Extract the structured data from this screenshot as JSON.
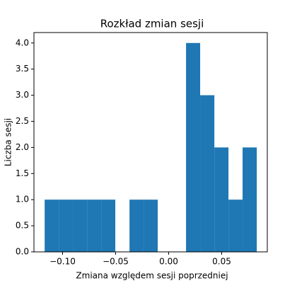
{
  "chart_data": {
    "type": "histogram",
    "title": "Rozkład zmian sesji",
    "x_label": "Zmiana względem sesji poprzedniej",
    "y_label": "Liczba sesji",
    "bins": [
      -0.1169,
      -0.1036,
      -0.0903,
      -0.0769,
      -0.0636,
      -0.0503,
      -0.0369,
      -0.0236,
      -0.0103,
      0.0031,
      0.0164,
      0.0297,
      0.0431,
      0.0564,
      0.0697,
      0.0831
    ],
    "values": [
      1,
      1,
      1,
      1,
      1,
      0,
      1,
      1,
      0,
      0,
      4,
      3,
      2,
      1,
      2
    ],
    "color": "#1f77b4",
    "xlim": [
      -0.127,
      0.093
    ],
    "xticks": [
      {
        "value": -0.1,
        "label": "−0.10"
      },
      {
        "value": -0.05,
        "label": "−0.05"
      },
      {
        "value": 0,
        "label": "0.00"
      },
      {
        "value": 0.05,
        "label": "0.05"
      }
    ],
    "ylim": [
      0,
      4.2
    ],
    "yticks": [
      {
        "value": 0,
        "label": "0.0"
      },
      {
        "value": 0.5,
        "label": "0.5"
      },
      {
        "value": 1,
        "label": "1.0"
      },
      {
        "value": 1.5,
        "label": "1.5"
      },
      {
        "value": 2,
        "label": "2.0"
      },
      {
        "value": 2.5,
        "label": "2.5"
      },
      {
        "value": 3,
        "label": "3.0"
      },
      {
        "value": 3.5,
        "label": "3.5"
      },
      {
        "value": 4,
        "label": "4.0"
      }
    ],
    "grid": false
  }
}
